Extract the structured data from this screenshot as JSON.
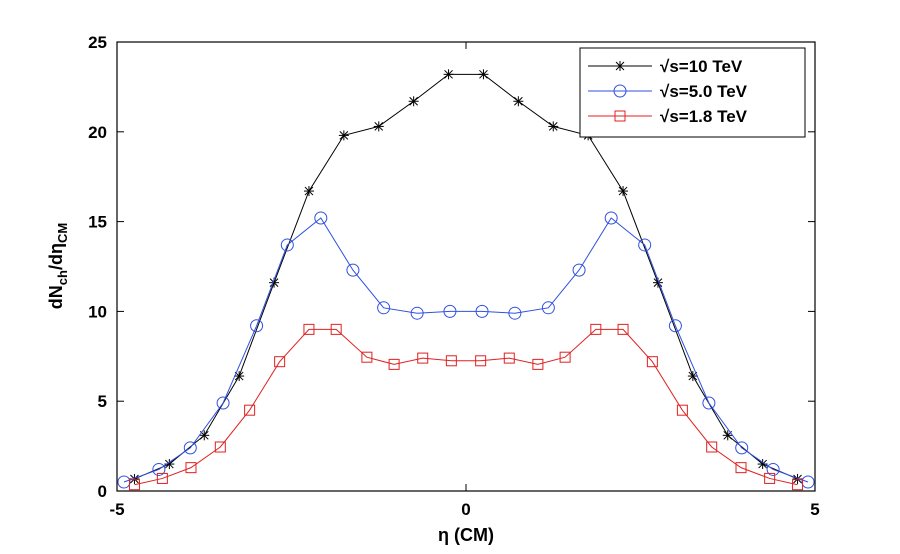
{
  "chart_data": {
    "type": "line",
    "xlabel": "η (CM)",
    "ylabel": [
      "dN",
      "ch",
      "/dη",
      "CM"
    ],
    "xlim": [
      -5,
      5
    ],
    "ylim": [
      0,
      25
    ],
    "xticks": [
      -5,
      0,
      5
    ],
    "yticks": [
      0,
      5,
      10,
      15,
      20,
      25
    ],
    "legend": "upper right",
    "series": [
      {
        "name": "√s=10 TeV",
        "color": "#000000",
        "marker": "asterisk",
        "x": [
          -4.75,
          -4.25,
          -3.75,
          -3.25,
          -2.75,
          -2.25,
          -1.75,
          -1.25,
          -0.75,
          -0.25,
          0.25,
          0.75,
          1.25,
          1.75,
          2.25,
          2.75,
          3.25,
          3.75,
          4.25,
          4.75
        ],
        "values": [
          0.67,
          1.5,
          3.1,
          6.4,
          11.6,
          16.7,
          19.8,
          20.3,
          21.7,
          23.2,
          23.2,
          21.7,
          20.3,
          19.8,
          16.7,
          11.6,
          6.4,
          3.1,
          1.5,
          0.67
        ]
      },
      {
        "name": "√s=5.0 TeV",
        "color": "#3050e0",
        "marker": "circle",
        "x": [
          -4.9,
          -4.4,
          -3.95,
          -3.48,
          -3.0,
          -2.56,
          -2.08,
          -1.62,
          -1.18,
          -0.7,
          -0.23,
          0.23,
          0.7,
          1.18,
          1.62,
          2.08,
          2.56,
          3.0,
          3.48,
          3.95,
          4.4,
          4.9
        ],
        "values": [
          0.5,
          1.2,
          2.4,
          4.9,
          9.2,
          13.7,
          15.2,
          12.3,
          10.2,
          9.9,
          10.0,
          10.0,
          9.9,
          10.2,
          12.3,
          15.2,
          13.7,
          9.2,
          4.9,
          2.4,
          1.2,
          0.5
        ]
      },
      {
        "name": "√s=1.8 TeV",
        "color": "#e02020",
        "marker": "square",
        "x": [
          -4.75,
          -4.35,
          -3.94,
          -3.52,
          -3.1,
          -2.67,
          -2.25,
          -1.86,
          -1.42,
          -1.03,
          -0.62,
          -0.21,
          0.21,
          0.62,
          1.03,
          1.42,
          1.86,
          2.25,
          2.67,
          3.1,
          3.52,
          3.94,
          4.35,
          4.75
        ],
        "values": [
          0.35,
          0.7,
          1.3,
          2.45,
          4.5,
          7.2,
          9.0,
          9.0,
          7.45,
          7.05,
          7.4,
          7.25,
          7.25,
          7.4,
          7.05,
          7.45,
          9.0,
          9.0,
          7.2,
          4.5,
          2.45,
          1.3,
          0.7,
          0.35
        ]
      }
    ]
  }
}
